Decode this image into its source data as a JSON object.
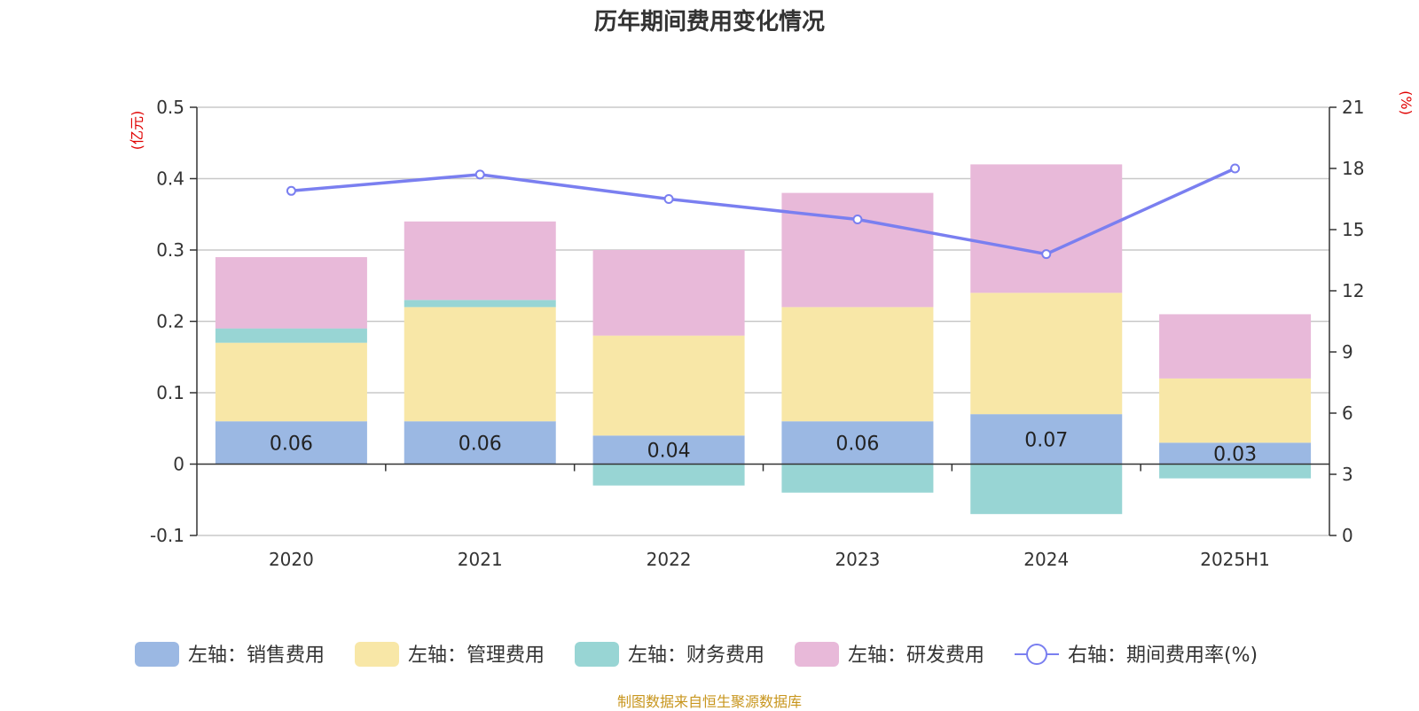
{
  "chart_data": {
    "type": "bar",
    "title": "历年期间费用变化情况",
    "source": "制图数据来自恒生聚源数据库",
    "categories": [
      "2020",
      "2021",
      "2022",
      "2023",
      "2024",
      "2025H1"
    ],
    "left_axis": {
      "unit": "(亿元)",
      "ylim": [
        -0.1,
        0.5
      ],
      "ticks": [
        "-0.1",
        "0",
        "0.1",
        "0.2",
        "0.3",
        "0.4",
        "0.5"
      ]
    },
    "right_axis": {
      "unit": "(%)",
      "ylim": [
        0,
        21
      ],
      "ticks": [
        "0",
        "3",
        "6",
        "9",
        "12",
        "15",
        "18",
        "21"
      ]
    },
    "grid": true,
    "legend_position": "bottom",
    "series": [
      {
        "name": "左轴：销售费用",
        "type": "bar",
        "stack": "cost",
        "axis": "left",
        "color": "#9bb8e3",
        "values": [
          0.06,
          0.06,
          0.04,
          0.06,
          0.07,
          0.03
        ],
        "labels": [
          "0.06",
          "0.06",
          "0.04",
          "0.06",
          "0.07",
          "0.03"
        ]
      },
      {
        "name": "左轴：管理费用",
        "type": "bar",
        "stack": "cost",
        "axis": "left",
        "color": "#f8e7a7",
        "values": [
          0.11,
          0.16,
          0.14,
          0.16,
          0.17,
          0.09
        ]
      },
      {
        "name": "左轴：财务费用",
        "type": "bar",
        "stack": "cost",
        "axis": "left",
        "color": "#98d5d4",
        "values": [
          0.02,
          0.01,
          -0.03,
          -0.04,
          -0.07,
          -0.02
        ]
      },
      {
        "name": "左轴：研发费用",
        "type": "bar",
        "stack": "cost",
        "axis": "left",
        "color": "#e8b9d9",
        "values": [
          0.1,
          0.11,
          0.12,
          0.16,
          0.18,
          0.09
        ]
      },
      {
        "name": "右轴：期间费用率(%)",
        "type": "line",
        "axis": "right",
        "color": "#7a7ff0",
        "values": [
          16.9,
          17.7,
          16.5,
          15.5,
          13.8,
          18.0
        ]
      }
    ]
  }
}
